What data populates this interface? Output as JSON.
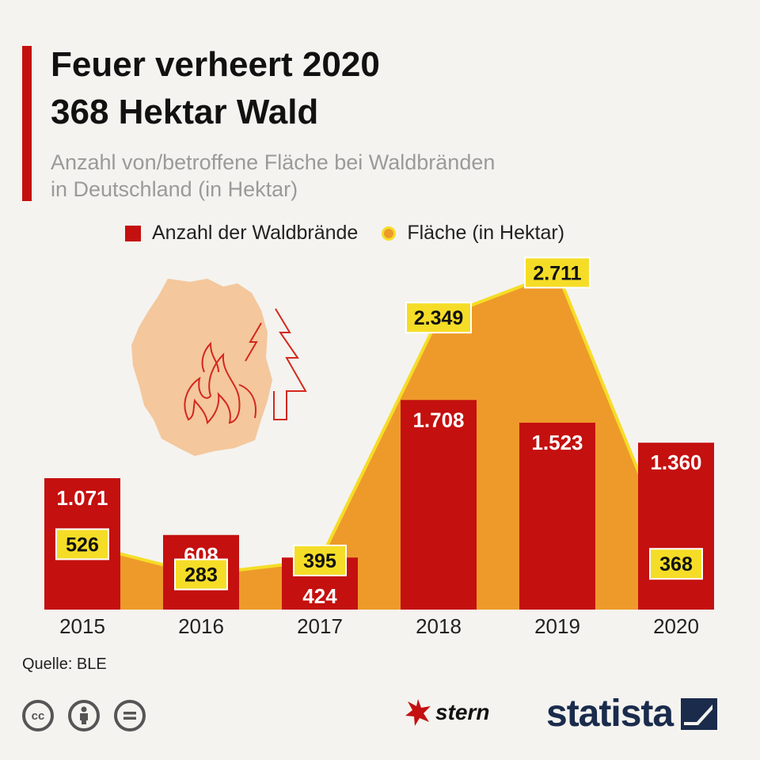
{
  "header": {
    "title_line1": "Feuer verheert 2020",
    "title_line2": "368 Hektar Wald",
    "subtitle_line1": "Anzahl von/betroffene Fläche bei Waldbränden",
    "subtitle_line2": "in Deutschland (in Hektar)"
  },
  "legend": {
    "fires_label": "Anzahl der Waldbrände",
    "area_label": "Fläche (in Hektar)"
  },
  "chart_data": {
    "type": "bar",
    "title": "Feuer verheert 2020 368 Hektar Wald",
    "subtitle": "Anzahl von/betroffene Fläche bei Waldbränden in Deutschland (in Hektar)",
    "categories": [
      "2015",
      "2016",
      "2017",
      "2018",
      "2019",
      "2020"
    ],
    "series": [
      {
        "name": "Anzahl der Waldbrände",
        "type": "bar",
        "values": [
          1071,
          608,
          424,
          1708,
          1523,
          1360
        ],
        "labels": [
          "1.071",
          "608",
          "424",
          "1.708",
          "1.523",
          "1.360"
        ]
      },
      {
        "name": "Fläche (in Hektar)",
        "type": "area",
        "values": [
          526,
          283,
          395,
          2349,
          2711,
          368
        ],
        "labels": [
          "526",
          "283",
          "395",
          "2.349",
          "2.711",
          "368"
        ]
      }
    ],
    "ylim": [
      0,
      3000
    ],
    "legend": "top",
    "grid": false
  },
  "colors": {
    "bar": "#c4100f",
    "area_fill": "#ee9a2a",
    "area_line": "#f5dd27",
    "label_box": "#f5dd27",
    "map": "#f4c79c",
    "icon_stroke": "#d3281f"
  },
  "footer": {
    "source": "Quelle: BLE",
    "cc_icons": [
      "cc-icon",
      "by-icon",
      "nd-icon"
    ],
    "cc_label": "cc",
    "stern": "stern",
    "statista": "statista"
  }
}
